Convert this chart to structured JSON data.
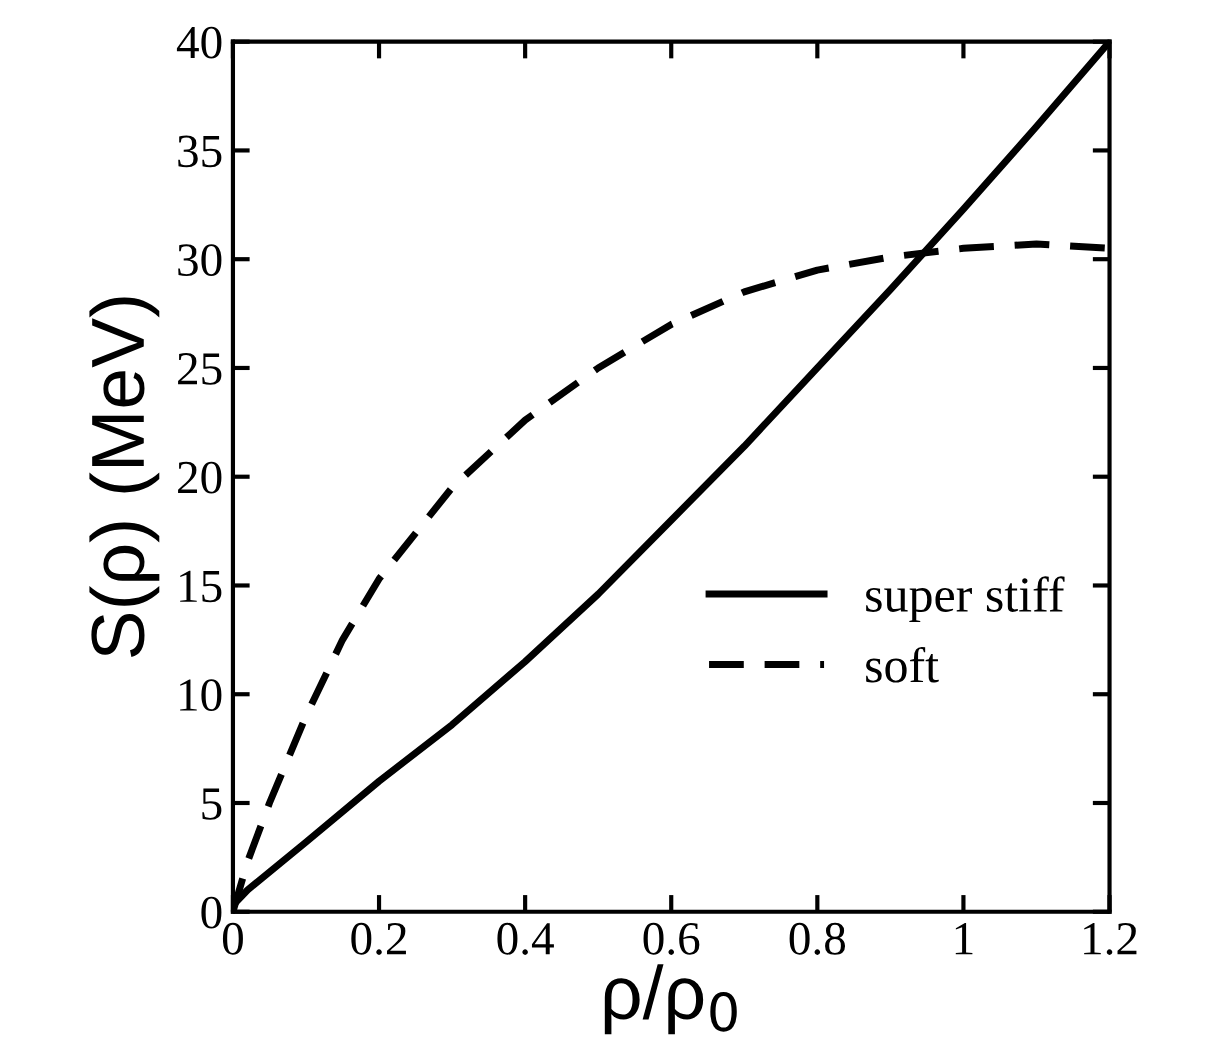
{
  "chart_data": {
    "type": "line",
    "xlabel": "ρ/ρ$_{0}$",
    "ylabel": "S(ρ) (MeV)",
    "xlim": [
      0,
      1.2
    ],
    "ylim": [
      0,
      40
    ],
    "xticks": [
      0,
      0.2,
      0.4,
      0.6,
      0.8,
      1,
      1.2
    ],
    "yticks": [
      0,
      5,
      10,
      15,
      20,
      25,
      30,
      35,
      40
    ],
    "grid": false,
    "legend": "bottom right",
    "series": [
      {
        "name": "super stiff",
        "color": "#000000",
        "line_style": "solid",
        "x": [
          0,
          0.02,
          0.1,
          0.2,
          0.3,
          0.4,
          0.5,
          0.6,
          0.7,
          0.8,
          0.9,
          1.0,
          1.1,
          1.2
        ],
        "values": [
          0.3,
          1,
          3.2,
          6,
          8.6,
          11.5,
          14.6,
          18,
          21.4,
          25,
          28.6,
          32.3,
          36.1,
          40
        ]
      },
      {
        "name": "soft",
        "color": "#000000",
        "line_style": "dashed",
        "x": [
          0,
          0.02,
          0.05,
          0.1,
          0.15,
          0.2,
          0.3,
          0.4,
          0.5,
          0.6,
          0.7,
          0.8,
          0.9,
          1.0,
          1.1,
          1.2
        ],
        "values": [
          0,
          2.3,
          5,
          9,
          12.5,
          15.3,
          19.5,
          22.6,
          25,
          27,
          28.5,
          29.5,
          30.1,
          30.5,
          30.7,
          30.5
        ]
      }
    ]
  }
}
